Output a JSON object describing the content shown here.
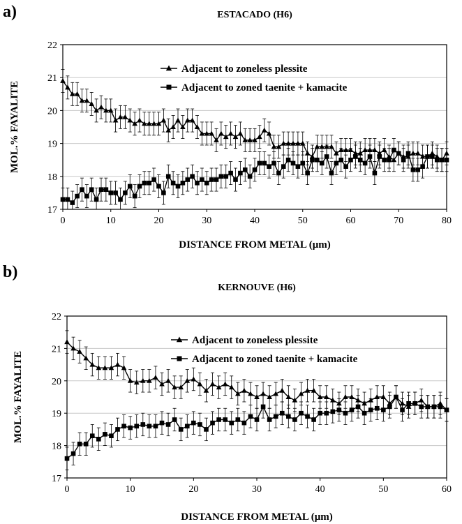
{
  "chart_data": [
    {
      "panel": "a)",
      "type": "line",
      "title": "ESTACADO (H6)",
      "xlabel": "DISTANCE FROM METAL (μm)",
      "ylabel": "MOL.% FAYALITE",
      "xlim": [
        0,
        80
      ],
      "ylim": [
        17,
        22
      ],
      "xticks": [
        "0",
        "10",
        "20",
        "30",
        "40",
        "50",
        "60",
        "70",
        "80"
      ],
      "yticks": [
        "17",
        "18",
        "19",
        "20",
        "21",
        "22"
      ],
      "grid": "horizontal",
      "legend_position": "top-right",
      "x": [
        0,
        1,
        2,
        3,
        4,
        5,
        6,
        7,
        8,
        9,
        10,
        11,
        12,
        13,
        14,
        15,
        16,
        17,
        18,
        19,
        20,
        21,
        22,
        23,
        24,
        25,
        26,
        27,
        28,
        29,
        30,
        31,
        32,
        33,
        34,
        35,
        36,
        37,
        38,
        39,
        40,
        41,
        42,
        43,
        44,
        45,
        46,
        47,
        48,
        49,
        50,
        51,
        52,
        53,
        54,
        55,
        56,
        57,
        58,
        59,
        60,
        61,
        62,
        63,
        64,
        65,
        66,
        67,
        68,
        69,
        70,
        71,
        72,
        73,
        74,
        75,
        76,
        77,
        78,
        79,
        80
      ],
      "series": [
        {
          "name": "Adjacent to zoneless plessite",
          "marker": "triangle",
          "error": 0.35,
          "values": [
            20.9,
            20.7,
            20.5,
            20.5,
            20.3,
            20.3,
            20.2,
            20.0,
            20.1,
            20.0,
            20.0,
            19.7,
            19.8,
            19.8,
            19.7,
            19.6,
            19.7,
            19.6,
            19.6,
            19.6,
            19.6,
            19.7,
            19.4,
            19.5,
            19.7,
            19.5,
            19.7,
            19.7,
            19.5,
            19.3,
            19.3,
            19.3,
            19.1,
            19.3,
            19.2,
            19.3,
            19.2,
            19.3,
            19.1,
            19.1,
            19.1,
            19.2,
            19.4,
            19.3,
            18.9,
            18.9,
            19.0,
            19.0,
            19.0,
            19.0,
            19.0,
            18.7,
            18.6,
            18.9,
            18.9,
            18.9,
            18.9,
            18.7,
            18.8,
            18.8,
            18.8,
            18.7,
            18.7,
            18.8,
            18.8,
            18.8,
            18.7,
            18.8,
            18.6,
            18.5,
            18.7,
            18.6,
            18.6,
            18.7,
            18.7,
            18.6,
            18.6,
            18.7,
            18.6,
            18.5,
            18.7
          ]
        },
        {
          "name": "Adjacent to zoned taenite + kamacite",
          "marker": "square",
          "error": 0.35,
          "values": [
            17.3,
            17.3,
            17.2,
            17.4,
            17.6,
            17.4,
            17.6,
            17.3,
            17.6,
            17.6,
            17.5,
            17.5,
            17.3,
            17.5,
            17.7,
            17.4,
            17.7,
            17.8,
            17.8,
            17.9,
            17.7,
            17.5,
            18.0,
            17.8,
            17.7,
            17.8,
            17.9,
            18.0,
            17.8,
            17.9,
            17.8,
            17.9,
            17.9,
            18.0,
            18.0,
            18.1,
            17.9,
            18.1,
            18.2,
            18.0,
            18.2,
            18.4,
            18.4,
            18.3,
            18.4,
            18.1,
            18.3,
            18.5,
            18.4,
            18.3,
            18.4,
            18.1,
            18.5,
            18.5,
            18.4,
            18.6,
            18.1,
            18.4,
            18.5,
            18.3,
            18.5,
            18.6,
            18.5,
            18.4,
            18.6,
            18.1,
            18.6,
            18.5,
            18.5,
            18.8,
            18.7,
            18.5,
            18.7,
            18.2,
            18.2,
            18.3,
            18.6,
            18.6,
            18.5,
            18.5,
            18.5
          ]
        }
      ]
    },
    {
      "panel": "b)",
      "type": "line",
      "title": "KERNOUVE (H6)",
      "xlabel": "DISTANCE FROM METAL (μm)",
      "ylabel": "MOL.% FAYALITE",
      "xlim": [
        0,
        60
      ],
      "ylim": [
        17,
        22
      ],
      "xticks": [
        "0",
        "10",
        "20",
        "30",
        "40",
        "50",
        "60"
      ],
      "yticks": [
        "17",
        "18",
        "19",
        "20",
        "21",
        "22"
      ],
      "grid": "horizontal",
      "legend_position": "top-right",
      "x": [
        0,
        1,
        2,
        3,
        4,
        5,
        6,
        7,
        8,
        9,
        10,
        11,
        12,
        13,
        14,
        15,
        16,
        17,
        18,
        19,
        20,
        21,
        22,
        23,
        24,
        25,
        26,
        27,
        28,
        29,
        30,
        31,
        32,
        33,
        34,
        35,
        36,
        37,
        38,
        39,
        40,
        41,
        42,
        43,
        44,
        45,
        46,
        47,
        48,
        49,
        50,
        51,
        52,
        53,
        54,
        55,
        56,
        57,
        58,
        59,
        60
      ],
      "series": [
        {
          "name": "Adjacent to zoneless plessite",
          "marker": "triangle",
          "error": 0.35,
          "values": [
            21.2,
            21.0,
            20.9,
            20.7,
            20.5,
            20.4,
            20.4,
            20.4,
            20.5,
            20.4,
            20.0,
            19.95,
            20.0,
            20.0,
            20.1,
            19.9,
            20.0,
            19.8,
            19.8,
            20.0,
            20.05,
            19.9,
            19.7,
            19.9,
            19.8,
            19.9,
            19.8,
            19.6,
            19.7,
            19.6,
            19.5,
            19.6,
            19.5,
            19.6,
            19.7,
            19.5,
            19.4,
            19.6,
            19.7,
            19.7,
            19.5,
            19.5,
            19.4,
            19.3,
            19.5,
            19.5,
            19.4,
            19.3,
            19.4,
            19.5,
            19.5,
            19.3,
            19.5,
            19.3,
            19.2,
            19.3,
            19.4,
            19.2,
            19.2,
            19.3,
            19.1
          ]
        },
        {
          "name": "Adjacent to zoned taenite + kamacite",
          "marker": "square",
          "error": 0.35,
          "values": [
            17.6,
            17.75,
            18.05,
            18.05,
            18.3,
            18.2,
            18.35,
            18.3,
            18.5,
            18.6,
            18.55,
            18.6,
            18.65,
            18.6,
            18.6,
            18.7,
            18.65,
            18.8,
            18.5,
            18.6,
            18.7,
            18.65,
            18.5,
            18.7,
            18.8,
            18.8,
            18.7,
            18.8,
            18.7,
            18.9,
            18.8,
            19.2,
            18.8,
            18.9,
            19.0,
            18.9,
            18.8,
            19.0,
            18.9,
            18.8,
            19.0,
            19.0,
            19.05,
            19.1,
            19.0,
            19.1,
            19.2,
            19.0,
            19.1,
            19.15,
            19.1,
            19.2,
            19.5,
            19.1,
            19.3,
            19.3,
            19.2,
            19.2,
            19.2,
            19.2,
            19.1
          ]
        }
      ]
    }
  ]
}
